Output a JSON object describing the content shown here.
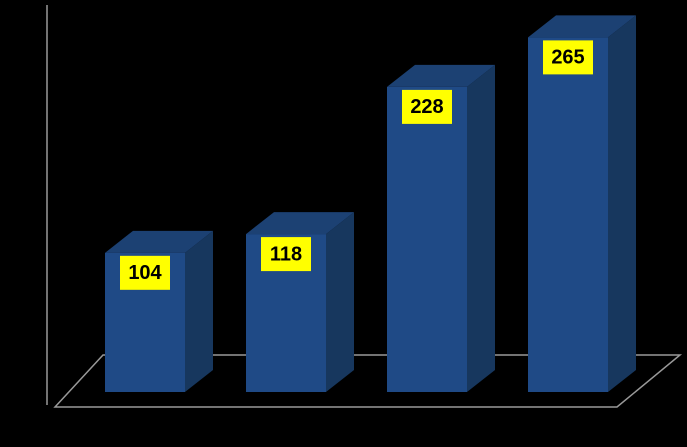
{
  "chart_data": {
    "type": "bar3d",
    "values": [
      104,
      118,
      228,
      265
    ],
    "color": "#1f4a86",
    "ylim": [
      0,
      275
    ],
    "label_background": "#ffff00"
  }
}
